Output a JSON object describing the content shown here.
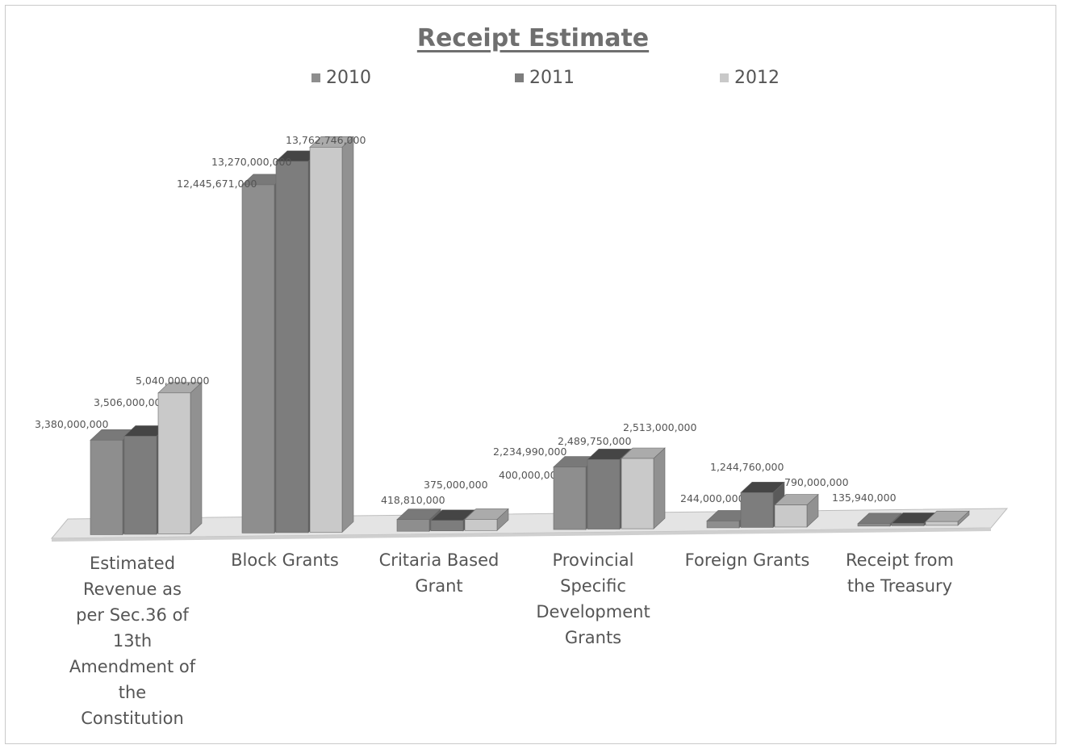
{
  "chart_data": {
    "type": "bar",
    "title": "Receipt Estimate",
    "categories": [
      "Estimated Revenue as per Sec.36 of 13th Amendment of the Constitution",
      "Block Grants",
      "Critaria Based Grant",
      "Provincial Specific Development Grants",
      "Foreign Grants",
      "Receipt from the Treasury"
    ],
    "category_label_lines": [
      [
        "Estimated",
        "Revenue as",
        "per Sec.36 of",
        "13th",
        "Amendment of",
        "the",
        "Constitution"
      ],
      [
        "Block Grants"
      ],
      [
        "Critaria Based",
        "Grant"
      ],
      [
        "Provincial",
        "Specific",
        "Development",
        "Grants"
      ],
      [
        "Foreign Grants"
      ],
      [
        "Receipt from",
        "the Treasury"
      ]
    ],
    "series": [
      {
        "name": "2010",
        "color": "#8e8e8e",
        "values": [
          3380000000,
          12445671000,
          418810000,
          2234990000,
          244000000,
          0
        ],
        "labels": [
          "3,380,000,000",
          "12,445,671,000",
          "418,810,000",
          "2,234,990,000",
          "244,000,000",
          ""
        ]
      },
      {
        "name": "2011",
        "color": "#7d7d7d",
        "values": [
          3506000000,
          13270000000,
          375000000,
          2489750000,
          1244760000,
          0
        ],
        "labels": [
          "3,506,000,000",
          "13,270,000,000",
          "375,000,000",
          "2,489,750,000",
          "1,244,760,000",
          ""
        ]
      },
      {
        "name": "2012",
        "color": "#c9c9c9",
        "values": [
          5040000000,
          13762746000,
          400000000,
          2513000000,
          790000000,
          135940000
        ],
        "labels": [
          "5,040,000,000",
          "13,762,746,000",
          "400,000,000",
          "2,513,000,000",
          "790,000,000",
          "135,940,000"
        ]
      }
    ],
    "ylim": [
      0,
      15000000000
    ],
    "grid": false,
    "legend_position": "top",
    "style": "3d-clustered-column"
  }
}
